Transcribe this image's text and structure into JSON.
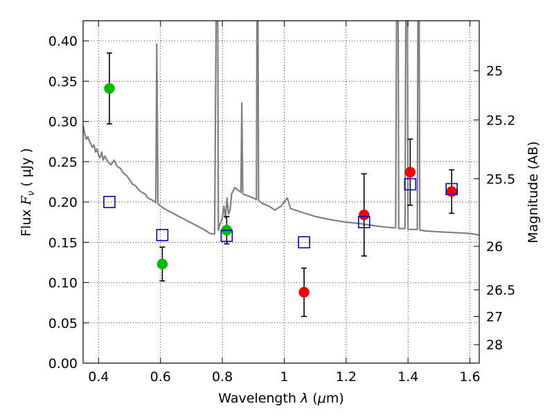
{
  "chart_data": {
    "type": "scatter",
    "xlabel_prefix": "Wavelength  ",
    "xlabel_symbol": "λ",
    "xlabel_unit_open": " (",
    "xlabel_mu": "μ",
    "xlabel_unit_close": "m)",
    "ylabel_text": "Flux  ",
    "ylabel_symbol": "F",
    "ylabel_sub": "ν",
    "ylabel_unit": "  ( μJy )",
    "y2label": "Magnitude (AB)",
    "xlim": [
      0.35,
      1.63
    ],
    "ylim": [
      0.0,
      0.425
    ],
    "xticks": [
      0.4,
      0.6,
      0.8,
      1.0,
      1.2,
      1.4,
      1.6
    ],
    "xtick_labels": [
      "0.4",
      "0.6",
      "0.8",
      "1",
      "1.2",
      "1.4",
      "1.6"
    ],
    "yticks": [
      0.0,
      0.05,
      0.1,
      0.15,
      0.2,
      0.25,
      0.3,
      0.35,
      0.4
    ],
    "ytick_labels": [
      "0.00",
      "0.05",
      "0.10",
      "0.15",
      "0.20",
      "0.25",
      "0.30",
      "0.35",
      "0.40"
    ],
    "y2ticks": [
      {
        "mag": 25,
        "label": "25",
        "flux": 0.363
      },
      {
        "mag": 25.2,
        "label": "25.2",
        "flux": 0.302
      },
      {
        "mag": 25.5,
        "label": "25.5",
        "flux": 0.229
      },
      {
        "mag": 26,
        "label": "26",
        "flux": 0.145
      },
      {
        "mag": 26.5,
        "label": "26.5",
        "flux": 0.091
      },
      {
        "mag": 27,
        "label": "27",
        "flux": 0.058
      },
      {
        "mag": 28,
        "label": "28",
        "flux": 0.023
      }
    ],
    "grid": true,
    "series": [
      {
        "name": "observed-hst-optical",
        "color": "#00bb00",
        "marker": "circle",
        "points": [
          {
            "x": 0.435,
            "y": 0.341,
            "err": 0.044
          },
          {
            "x": 0.606,
            "y": 0.123,
            "err": 0.021
          },
          {
            "x": 0.814,
            "y": 0.165,
            "err": 0.017
          }
        ]
      },
      {
        "name": "observed-hst-nir",
        "color": "#ee0000",
        "marker": "circle",
        "points": [
          {
            "x": 1.064,
            "y": 0.088,
            "err": 0.03
          },
          {
            "x": 1.258,
            "y": 0.184,
            "err": 0.051
          },
          {
            "x": 1.407,
            "y": 0.237,
            "err": 0.041
          },
          {
            "x": 1.541,
            "y": 0.213,
            "err": 0.027
          }
        ]
      },
      {
        "name": "model-photometry",
        "color": "#0000cc",
        "marker": "square",
        "points": [
          {
            "x": 0.435,
            "y": 0.2
          },
          {
            "x": 0.606,
            "y": 0.159
          },
          {
            "x": 0.814,
            "y": 0.158
          },
          {
            "x": 1.064,
            "y": 0.15
          },
          {
            "x": 1.258,
            "y": 0.175
          },
          {
            "x": 1.407,
            "y": 0.222
          },
          {
            "x": 1.541,
            "y": 0.216
          }
        ]
      }
    ],
    "sed_model": {
      "name": "model-sed",
      "color": "#808080",
      "points": [
        [
          0.35,
          0.295
        ],
        [
          0.355,
          0.285
        ],
        [
          0.36,
          0.278
        ],
        [
          0.365,
          0.281
        ],
        [
          0.37,
          0.276
        ],
        [
          0.375,
          0.272
        ],
        [
          0.38,
          0.268
        ],
        [
          0.385,
          0.271
        ],
        [
          0.39,
          0.262
        ],
        [
          0.395,
          0.266
        ],
        [
          0.4,
          0.258
        ],
        [
          0.405,
          0.255
        ],
        [
          0.41,
          0.262
        ],
        [
          0.415,
          0.252
        ],
        [
          0.42,
          0.257
        ],
        [
          0.43,
          0.25
        ],
        [
          0.44,
          0.246
        ],
        [
          0.45,
          0.252
        ],
        [
          0.46,
          0.244
        ],
        [
          0.47,
          0.242
        ],
        [
          0.48,
          0.236
        ],
        [
          0.49,
          0.233
        ],
        [
          0.5,
          0.228
        ],
        [
          0.51,
          0.222
        ],
        [
          0.52,
          0.22
        ],
        [
          0.53,
          0.215
        ],
        [
          0.54,
          0.212
        ],
        [
          0.55,
          0.21
        ],
        [
          0.56,
          0.205
        ],
        [
          0.57,
          0.203
        ],
        [
          0.58,
          0.201
        ],
        [
          0.585,
          0.199
        ],
        [
          0.588,
          0.396
        ],
        [
          0.592,
          0.198
        ],
        [
          0.6,
          0.195
        ],
        [
          0.62,
          0.19
        ],
        [
          0.64,
          0.186
        ],
        [
          0.66,
          0.182
        ],
        [
          0.68,
          0.178
        ],
        [
          0.7,
          0.174
        ],
        [
          0.72,
          0.17
        ],
        [
          0.74,
          0.166
        ],
        [
          0.76,
          0.161
        ],
        [
          0.775,
          0.16
        ],
        [
          0.78,
          0.44
        ],
        [
          0.785,
          0.44
        ],
        [
          0.787,
          0.165
        ],
        [
          0.79,
          0.17
        ],
        [
          0.8,
          0.18
        ],
        [
          0.805,
          0.195
        ],
        [
          0.81,
          0.18
        ],
        [
          0.815,
          0.205
        ],
        [
          0.82,
          0.185
        ],
        [
          0.825,
          0.19
        ],
        [
          0.83,
          0.21
        ],
        [
          0.84,
          0.218
        ],
        [
          0.85,
          0.215
        ],
        [
          0.86,
          0.212
        ],
        [
          0.863,
          0.323
        ],
        [
          0.866,
          0.21
        ],
        [
          0.88,
          0.208
        ],
        [
          0.9,
          0.205
        ],
        [
          0.91,
          0.203
        ],
        [
          0.912,
          0.44
        ],
        [
          0.915,
          0.44
        ],
        [
          0.917,
          0.202
        ],
        [
          0.93,
          0.198
        ],
        [
          0.95,
          0.195
        ],
        [
          0.97,
          0.19
        ],
        [
          0.99,
          0.195
        ],
        [
          1.0,
          0.2
        ],
        [
          1.01,
          0.205
        ],
        [
          1.02,
          0.192
        ],
        [
          1.05,
          0.188
        ],
        [
          1.1,
          0.182
        ],
        [
          1.15,
          0.178
        ],
        [
          1.2,
          0.175
        ],
        [
          1.25,
          0.173
        ],
        [
          1.3,
          0.17
        ],
        [
          1.35,
          0.168
        ],
        [
          1.36,
          0.168
        ],
        [
          1.363,
          0.44
        ],
        [
          1.368,
          0.44
        ],
        [
          1.37,
          0.167
        ],
        [
          1.38,
          0.167
        ],
        [
          1.39,
          0.167
        ],
        [
          1.393,
          0.44
        ],
        [
          1.398,
          0.44
        ],
        [
          1.4,
          0.166
        ],
        [
          1.42,
          0.166
        ],
        [
          1.43,
          0.166
        ],
        [
          1.432,
          0.44
        ],
        [
          1.436,
          0.44
        ],
        [
          1.438,
          0.165
        ],
        [
          1.46,
          0.164
        ],
        [
          1.5,
          0.163
        ],
        [
          1.55,
          0.162
        ],
        [
          1.6,
          0.161
        ],
        [
          1.63,
          0.159
        ]
      ]
    }
  }
}
